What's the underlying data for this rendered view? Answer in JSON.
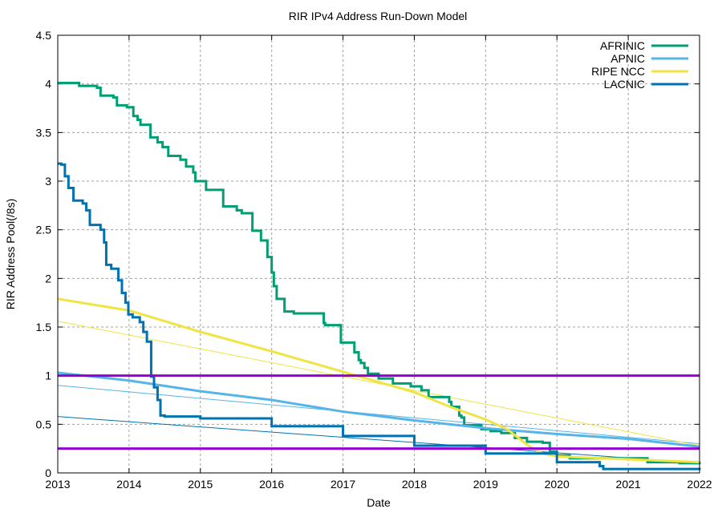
{
  "chart_data": {
    "type": "line",
    "title": "RIR IPv4 Address Run-Down Model",
    "xlabel": "Date",
    "ylabel": "RIR Address Pool(/8s)",
    "xlim": [
      2013,
      2022
    ],
    "ylim": [
      0,
      4.5
    ],
    "xticks": [
      "2013",
      "2014",
      "2015",
      "2016",
      "2017",
      "2018",
      "2019",
      "2020",
      "2021",
      "2022"
    ],
    "yticks": [
      "0",
      "0.5",
      "1",
      "1.5",
      "2",
      "2.5",
      "3",
      "3.5",
      "4",
      "4.5"
    ],
    "grid": true,
    "legend_position": "top-right",
    "series": [
      {
        "name": "AFRINIC",
        "color": "#009e73",
        "width": "thick",
        "step": true,
        "x": [
          2013,
          2013.3,
          2013.55,
          2013.6,
          2013.78,
          2013.83,
          2013.97,
          2014.06,
          2014.12,
          2014.16,
          2014.3,
          2014.4,
          2014.47,
          2014.55,
          2014.72,
          2014.8,
          2014.9,
          2014.93,
          2015.08,
          2015.32,
          2015.51,
          2015.58,
          2015.73,
          2015.85,
          2015.94,
          2016.0,
          2016.03,
          2016.07,
          2016.18,
          2016.31,
          2016.73,
          2016.75,
          2016.97,
          2017.16,
          2017.22,
          2017.25,
          2017.3,
          2017.35,
          2017.5,
          2017.7,
          2017.95,
          2018.1,
          2018.2,
          2018.49,
          2018.52,
          2018.63,
          2018.66,
          2018.7,
          2018.94,
          2019.07,
          2019.22,
          2019.41,
          2019.58,
          2019.8,
          2019.9,
          2020.0,
          2020.18,
          2021.27,
          2021.72,
          2022
        ],
        "y": [
          4.01,
          3.98,
          3.96,
          3.88,
          3.86,
          3.78,
          3.76,
          3.67,
          3.63,
          3.58,
          3.45,
          3.4,
          3.35,
          3.26,
          3.22,
          3.15,
          3.09,
          3.0,
          2.91,
          2.74,
          2.7,
          2.67,
          2.49,
          2.39,
          2.22,
          2.06,
          1.92,
          1.79,
          1.66,
          1.64,
          1.54,
          1.52,
          1.34,
          1.24,
          1.16,
          1.13,
          1.08,
          1.02,
          0.97,
          0.92,
          0.89,
          0.85,
          0.78,
          0.73,
          0.68,
          0.59,
          0.57,
          0.49,
          0.45,
          0.43,
          0.41,
          0.36,
          0.32,
          0.31,
          0.22,
          0.18,
          0.15,
          0.11,
          0.1,
          0.09
        ]
      },
      {
        "name": "APNIC",
        "color": "#56b4e9",
        "width": "thick",
        "step": false,
        "x": [
          2013,
          2014,
          2015,
          2016,
          2017,
          2018,
          2019,
          2020,
          2021,
          2022
        ],
        "y": [
          1.03,
          0.95,
          0.84,
          0.75,
          0.63,
          0.54,
          0.46,
          0.4,
          0.35,
          0.27
        ]
      },
      {
        "name": "RIPE NCC",
        "color": "#f0e442",
        "width": "thick",
        "step": false,
        "x": [
          2013,
          2014,
          2015,
          2016,
          2017,
          2018,
          2018.5,
          2019,
          2019.3,
          2019.6,
          2019.8,
          2020,
          2021,
          2022
        ],
        "y": [
          1.79,
          1.67,
          1.45,
          1.25,
          1.04,
          0.83,
          0.68,
          0.55,
          0.45,
          0.28,
          0.2,
          0.17,
          0.14,
          0.11
        ]
      },
      {
        "name": "LACNIC",
        "color": "#0072b2",
        "width": "thick",
        "step": true,
        "x": [
          2013,
          2013.05,
          2013.1,
          2013.15,
          2013.22,
          2013.35,
          2013.4,
          2013.45,
          2013.6,
          2013.65,
          2013.68,
          2013.75,
          2013.85,
          2013.9,
          2013.95,
          2013.99,
          2014.05,
          2014.15,
          2014.2,
          2014.25,
          2014.31,
          2014.35,
          2014.4,
          2014.44,
          2014.5,
          2015,
          2016,
          2017,
          2018,
          2019,
          2020,
          2020.6,
          2020.65,
          2022
        ],
        "y": [
          3.18,
          3.17,
          3.05,
          2.93,
          2.8,
          2.77,
          2.7,
          2.55,
          2.5,
          2.37,
          2.14,
          2.1,
          1.98,
          1.85,
          1.75,
          1.63,
          1.6,
          1.55,
          1.45,
          1.35,
          0.99,
          0.88,
          0.75,
          0.59,
          0.58,
          0.56,
          0.48,
          0.38,
          0.28,
          0.2,
          0.11,
          0.07,
          0.04,
          0.03
        ]
      },
      {
        "color": "#56b4e9",
        "width": "thin",
        "step": false,
        "x": [
          2013,
          2022
        ],
        "y": [
          0.9,
          0.3
        ]
      },
      {
        "color": "#f0e442",
        "width": "thin",
        "step": false,
        "x": [
          2013,
          2022
        ],
        "y": [
          1.56,
          0.28
        ]
      },
      {
        "color": "#0072b2",
        "width": "thin",
        "step": false,
        "x": [
          2013,
          2022
        ],
        "y": [
          0.58,
          0.1
        ]
      },
      {
        "color": "#9400d3",
        "width": "thick",
        "step": false,
        "x": [
          2013,
          2022
        ],
        "y": [
          1.0,
          1.0
        ]
      },
      {
        "color": "#9400d3",
        "width": "thick",
        "step": false,
        "x": [
          2013,
          2022
        ],
        "y": [
          0.25,
          0.25
        ]
      }
    ]
  }
}
